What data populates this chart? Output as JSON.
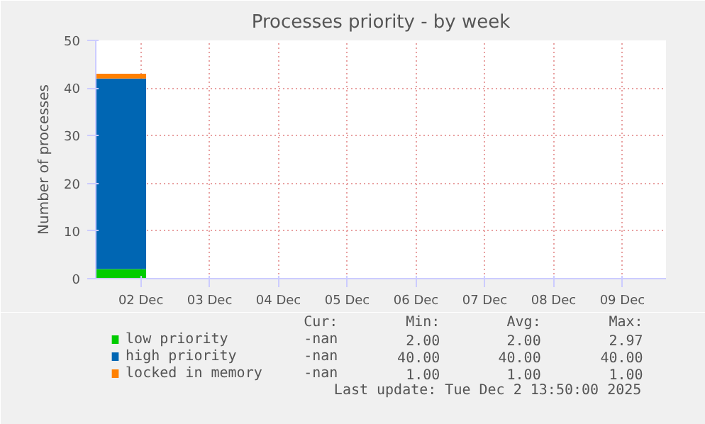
{
  "chart_data": {
    "type": "area",
    "title": "Processes priority - by week",
    "ylabel": "Number of processes",
    "stacked": true,
    "x": [
      "2025-12-01T20:15",
      "2025-12-02T13:50"
    ],
    "series": [
      {
        "name": "low priority",
        "color": "#00cc00",
        "values": [
          2,
          2
        ]
      },
      {
        "name": "high priority",
        "color": "#0066b3",
        "values": [
          40,
          40
        ]
      },
      {
        "name": "locked in memory",
        "color": "#ff8000",
        "values": [
          1,
          1
        ]
      }
    ],
    "xlim": [
      "2025-12-01T20:15",
      "2025-12-10T03:15"
    ],
    "xticks": [
      {
        "value": "2025-12-02T12:00",
        "label": "02 Dec"
      },
      {
        "value": "2025-12-03T12:00",
        "label": "03 Dec"
      },
      {
        "value": "2025-12-04T12:00",
        "label": "04 Dec"
      },
      {
        "value": "2025-12-05T12:00",
        "label": "05 Dec"
      },
      {
        "value": "2025-12-06T12:00",
        "label": "06 Dec"
      },
      {
        "value": "2025-12-07T12:00",
        "label": "07 Dec"
      },
      {
        "value": "2025-12-08T12:00",
        "label": "08 Dec"
      },
      {
        "value": "2025-12-09T12:00",
        "label": "09 Dec"
      }
    ],
    "ylim": [
      0,
      50
    ],
    "yticks": [
      0,
      10,
      20,
      30,
      40,
      50
    ],
    "grid": true,
    "legend": "bottom",
    "annotations": [
      "Cur:",
      "Min:",
      "Avg:",
      "Max:",
      "-nan",
      "2.00",
      "2.00",
      "2.97",
      "-nan",
      "40.00",
      "40.00",
      "40.00",
      "-nan",
      "1.00",
      "1.00",
      "1.00",
      "Last update: Tue Dec  2 13:50:00 2025"
    ]
  }
}
